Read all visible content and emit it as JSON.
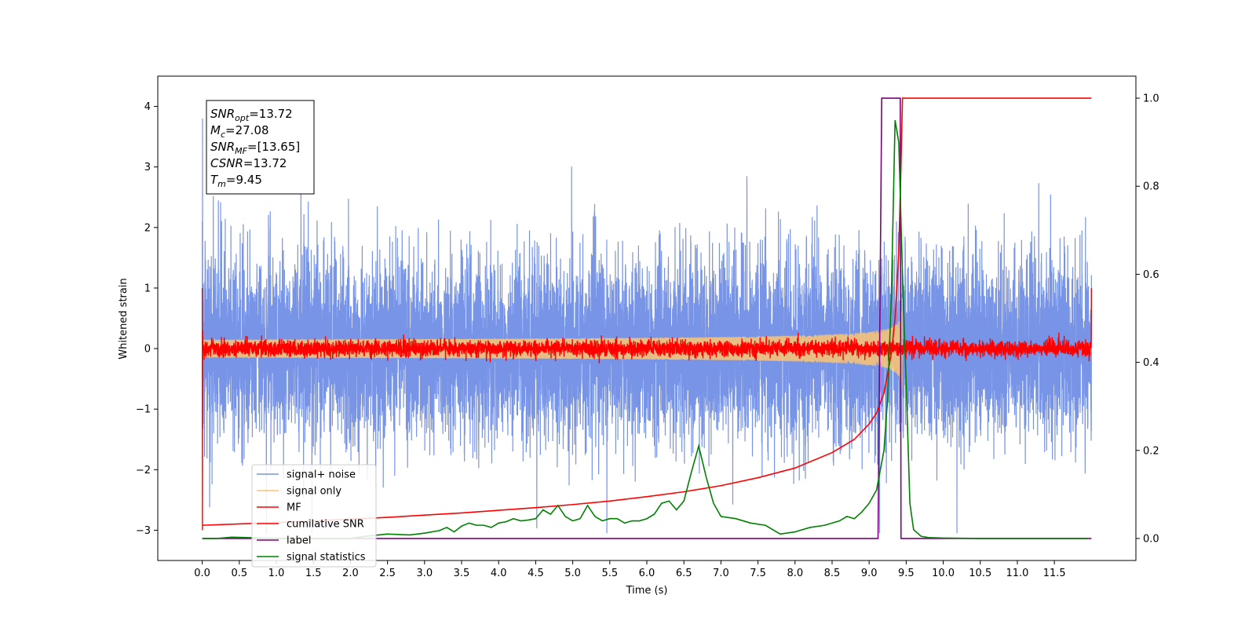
{
  "chart_data": {
    "type": "line",
    "xlabel": "Time (s)",
    "ylabel": "Whitened strain",
    "xlim": [
      -0.6,
      12.6
    ],
    "ylim": [
      -3.5,
      4.5
    ],
    "y2lim": [
      -0.05,
      1.05
    ],
    "x_ticks": [
      0.0,
      0.5,
      1.0,
      1.5,
      2.0,
      2.5,
      3.0,
      3.5,
      4.0,
      4.5,
      5.0,
      5.5,
      6.0,
      6.5,
      7.0,
      7.5,
      8.0,
      8.5,
      9.0,
      9.5,
      10.0,
      10.5,
      11.0,
      11.5
    ],
    "x_tick_labels": [
      "0.0",
      "0.5",
      "1.0",
      "1.5",
      "2.0",
      "2.5",
      "3.0",
      "3.5",
      "4.0",
      "4.5",
      "5.0",
      "5.5",
      "6.0",
      "6.5",
      "7.0",
      "7.5",
      "8.0",
      "8.5",
      "9.0",
      "9.5",
      "10.0",
      "10.5",
      "11.0",
      "11.5"
    ],
    "y_ticks": [
      -3,
      -2,
      -1,
      0,
      1,
      2,
      3,
      4
    ],
    "y_tick_labels": [
      "−3",
      "−2",
      "−1",
      "0",
      "1",
      "2",
      "3",
      "4"
    ],
    "y2_ticks": [
      0.0,
      0.2,
      0.4,
      0.6,
      0.8,
      1.0
    ],
    "y2_tick_labels": [
      "0.0",
      "0.2",
      "0.4",
      "0.6",
      "0.8",
      "1.0"
    ],
    "grid": false,
    "legend_position": "lower-left",
    "annotation_box": {
      "position": "top-left",
      "lines": [
        {
          "symbol": "SNR",
          "sub": "opt",
          "value": "=13.72"
        },
        {
          "symbol": "M",
          "sub": "c",
          "value": "=27.08"
        },
        {
          "symbol": "SNR",
          "sub": "MF",
          "value": "=[13.65]"
        },
        {
          "symbol": "CSNR",
          "sub": "",
          "value": "=13.72"
        },
        {
          "symbol": "T",
          "sub": "m",
          "value": "=9.45"
        }
      ]
    },
    "series": [
      {
        "name": "signal+ noise",
        "axis": "left",
        "color": "#7894e6",
        "style": "noise",
        "x_range": [
          0.0,
          12.0
        ],
        "amplitude_sd": 0.75,
        "peak_range": [
          -3.05,
          3.8
        ]
      },
      {
        "name": "signal only",
        "axis": "left",
        "color": "#f5c27a",
        "style": "chirp",
        "x_range": [
          0.0,
          9.45
        ],
        "merger_time": 9.45,
        "peak_amplitude": 0.9
      },
      {
        "name": "MF",
        "axis": "left",
        "color": "#ff0000",
        "style": "noise",
        "x_range": [
          0.0,
          12.0
        ],
        "amplitude_sd": 0.07,
        "edge_values": [
          1.0,
          -3.0
        ]
      },
      {
        "name": "cumilative SNR",
        "axis": "right",
        "color": "#ff0000",
        "x": [
          0.0,
          0.5,
          1.0,
          1.5,
          2.0,
          2.5,
          3.0,
          3.5,
          4.0,
          4.5,
          5.0,
          5.5,
          6.0,
          6.5,
          7.0,
          7.5,
          8.0,
          8.5,
          8.8,
          9.0,
          9.1,
          9.2,
          9.3,
          9.35,
          9.4,
          9.43,
          9.45,
          12.0
        ],
        "y": [
          0.03,
          0.033,
          0.036,
          0.04,
          0.044,
          0.048,
          0.053,
          0.058,
          0.064,
          0.07,
          0.077,
          0.085,
          0.095,
          0.106,
          0.12,
          0.138,
          0.16,
          0.195,
          0.225,
          0.26,
          0.285,
          0.33,
          0.42,
          0.5,
          0.65,
          0.85,
          1.0,
          1.0
        ]
      },
      {
        "name": "label",
        "axis": "right",
        "color": "#800080",
        "x": [
          0.0,
          9.12,
          9.17,
          9.42,
          9.43,
          9.47,
          12.0
        ],
        "y": [
          0.0,
          0.0,
          1.0,
          1.0,
          0.0,
          0.0,
          0.0
        ]
      },
      {
        "name": "signal statistics",
        "axis": "right",
        "color": "#008000",
        "x": [
          0.0,
          0.2,
          0.4,
          0.6,
          1.0,
          1.5,
          2.0,
          2.2,
          2.5,
          2.8,
          3.0,
          3.2,
          3.3,
          3.4,
          3.5,
          3.6,
          3.7,
          3.8,
          3.9,
          4.0,
          4.1,
          4.2,
          4.3,
          4.4,
          4.5,
          4.6,
          4.7,
          4.8,
          4.9,
          5.0,
          5.1,
          5.2,
          5.3,
          5.4,
          5.5,
          5.6,
          5.7,
          5.8,
          5.9,
          6.0,
          6.1,
          6.2,
          6.3,
          6.4,
          6.5,
          6.6,
          6.7,
          6.8,
          6.9,
          7.0,
          7.2,
          7.4,
          7.6,
          7.8,
          8.0,
          8.2,
          8.4,
          8.6,
          8.7,
          8.8,
          8.9,
          9.0,
          9.1,
          9.2,
          9.25,
          9.3,
          9.35,
          9.4,
          9.45,
          9.5,
          9.55,
          9.6,
          9.7,
          9.8,
          10.0,
          10.5,
          11.0,
          11.5,
          11.95
        ],
        "y": [
          0.0,
          0.0,
          0.003,
          0.002,
          0.0,
          0.0,
          0.0,
          0.005,
          0.01,
          0.008,
          0.012,
          0.018,
          0.025,
          0.015,
          0.028,
          0.035,
          0.03,
          0.03,
          0.025,
          0.035,
          0.038,
          0.045,
          0.04,
          0.042,
          0.045,
          0.065,
          0.055,
          0.075,
          0.05,
          0.04,
          0.045,
          0.075,
          0.05,
          0.04,
          0.045,
          0.045,
          0.035,
          0.04,
          0.04,
          0.045,
          0.055,
          0.08,
          0.085,
          0.065,
          0.085,
          0.15,
          0.21,
          0.14,
          0.08,
          0.05,
          0.045,
          0.035,
          0.03,
          0.01,
          0.015,
          0.025,
          0.03,
          0.04,
          0.05,
          0.045,
          0.06,
          0.08,
          0.11,
          0.2,
          0.32,
          0.55,
          0.95,
          0.9,
          0.6,
          0.35,
          0.08,
          0.02,
          0.005,
          0.002,
          0.001,
          0.0,
          0.0,
          0.0,
          0.0
        ]
      }
    ]
  }
}
